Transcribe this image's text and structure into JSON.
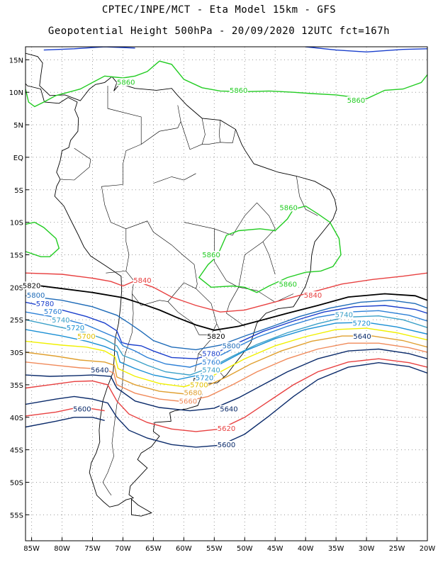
{
  "header": {
    "line1": "CPTEC/INPE/MCT  -   Eta Model 15km  -  GFS",
    "line2": "Geopotential Height 500hPa - 20/09/2020 12UTC fct=167h"
  },
  "axes": {
    "lat_labels": [
      "15N",
      "10N",
      "5N",
      "EQ",
      "5S",
      "10S",
      "15S",
      "20S",
      "25S",
      "30S",
      "35S",
      "40S",
      "45S",
      "50S",
      "55S"
    ],
    "lon_labels": [
      "85W",
      "80W",
      "75W",
      "70W",
      "65W",
      "60W",
      "55W",
      "50W",
      "45W",
      "40W",
      "35W",
      "30W",
      "25W",
      "20W"
    ],
    "lat_range": [
      17,
      -59
    ],
    "lon_range": [
      -86,
      -20
    ],
    "grid": "dotted"
  },
  "contours": [
    {
      "value": "5860",
      "color": "#22cc22"
    },
    {
      "value": "5840",
      "color": "#e84040"
    },
    {
      "value": "5820",
      "color": "#000000"
    },
    {
      "value": "5800",
      "color": "#1e6bb8"
    },
    {
      "value": "5780",
      "color": "#1a3fcc"
    },
    {
      "value": "5760",
      "color": "#2b7fd6"
    },
    {
      "value": "5740",
      "color": "#3aa0c8"
    },
    {
      "value": "5720",
      "color": "#1a8fd4"
    },
    {
      "value": "5700",
      "color": "#f0f000"
    },
    {
      "value": "5680",
      "color": "#e0a030"
    },
    {
      "value": "5660",
      "color": "#f08a5a"
    },
    {
      "value": "5640",
      "color": "#0a2a6a"
    },
    {
      "value": "5620",
      "color": "#e84040"
    },
    {
      "value": "5600",
      "color": "#0a2a6a"
    }
  ],
  "labels": [
    {
      "text": "5860",
      "lon": -69.5,
      "lat": 11.3,
      "color": "#22cc22"
    },
    {
      "text": "5860",
      "lon": -51.0,
      "lat": 10.0,
      "color": "#22cc22"
    },
    {
      "text": "5860",
      "lon": -31.7,
      "lat": 8.5,
      "color": "#22cc22"
    },
    {
      "text": "5860",
      "lon": -42.8,
      "lat": -8.0,
      "color": "#22cc22"
    },
    {
      "text": "5860",
      "lon": -55.5,
      "lat": -15.3,
      "color": "#22cc22"
    },
    {
      "text": "5860",
      "lon": -42.9,
      "lat": -19.8,
      "color": "#22cc22"
    },
    {
      "text": "5840",
      "lon": -66.8,
      "lat": -19.2,
      "color": "#e84040"
    },
    {
      "text": "5840",
      "lon": -38.8,
      "lat": -21.5,
      "color": "#e84040"
    },
    {
      "text": "5820",
      "lon": -85.0,
      "lat": -20.0,
      "color": "#000000"
    },
    {
      "text": "5820",
      "lon": -54.7,
      "lat": -27.8,
      "color": "#000000"
    },
    {
      "text": "5800",
      "lon": -84.3,
      "lat": -21.5,
      "color": "#1e6bb8"
    },
    {
      "text": "5800",
      "lon": -52.2,
      "lat": -29.3,
      "color": "#1e6bb8"
    },
    {
      "text": "5780",
      "lon": -82.8,
      "lat": -22.8,
      "color": "#1a3fcc"
    },
    {
      "text": "5780",
      "lon": -55.5,
      "lat": -30.5,
      "color": "#1a3fcc"
    },
    {
      "text": "5760",
      "lon": -81.5,
      "lat": -24.0,
      "color": "#2b7fd6"
    },
    {
      "text": "5760",
      "lon": -55.5,
      "lat": -31.8,
      "color": "#2b7fd6"
    },
    {
      "text": "5740",
      "lon": -80.2,
      "lat": -25.3,
      "color": "#3aa0c8"
    },
    {
      "text": "5740",
      "lon": -55.5,
      "lat": -33.0,
      "color": "#3aa0c8"
    },
    {
      "text": "5740",
      "lon": -33.7,
      "lat": -24.5,
      "color": "#3aa0c8"
    },
    {
      "text": "5720",
      "lon": -77.8,
      "lat": -26.5,
      "color": "#1a8fd4"
    },
    {
      "text": "5720",
      "lon": -56.6,
      "lat": -34.2,
      "color": "#1a8fd4"
    },
    {
      "text": "5720",
      "lon": -30.8,
      "lat": -25.8,
      "color": "#1a8fd4"
    },
    {
      "text": "5700",
      "lon": -76.0,
      "lat": -27.8,
      "color": "#e0c000"
    },
    {
      "text": "5700",
      "lon": -57.5,
      "lat": -35.3,
      "color": "#e0c000"
    },
    {
      "text": "5680",
      "lon": -58.5,
      "lat": -36.5,
      "color": "#e0a030"
    },
    {
      "text": "5660",
      "lon": -59.3,
      "lat": -37.8,
      "color": "#f08a5a"
    },
    {
      "text": "5640",
      "lon": -73.8,
      "lat": -33.0,
      "color": "#0a2a6a"
    },
    {
      "text": "5640",
      "lon": -52.6,
      "lat": -39.0,
      "color": "#0a2a6a"
    },
    {
      "text": "5640",
      "lon": -30.7,
      "lat": -27.8,
      "color": "#0a2a6a"
    },
    {
      "text": "5620",
      "lon": -53.0,
      "lat": -42.0,
      "color": "#e84040"
    },
    {
      "text": "5600",
      "lon": -76.7,
      "lat": -39.0,
      "color": "#0a2a6a"
    },
    {
      "text": "5600",
      "lon": -53.0,
      "lat": -44.5,
      "color": "#0a2a6a"
    }
  ]
}
